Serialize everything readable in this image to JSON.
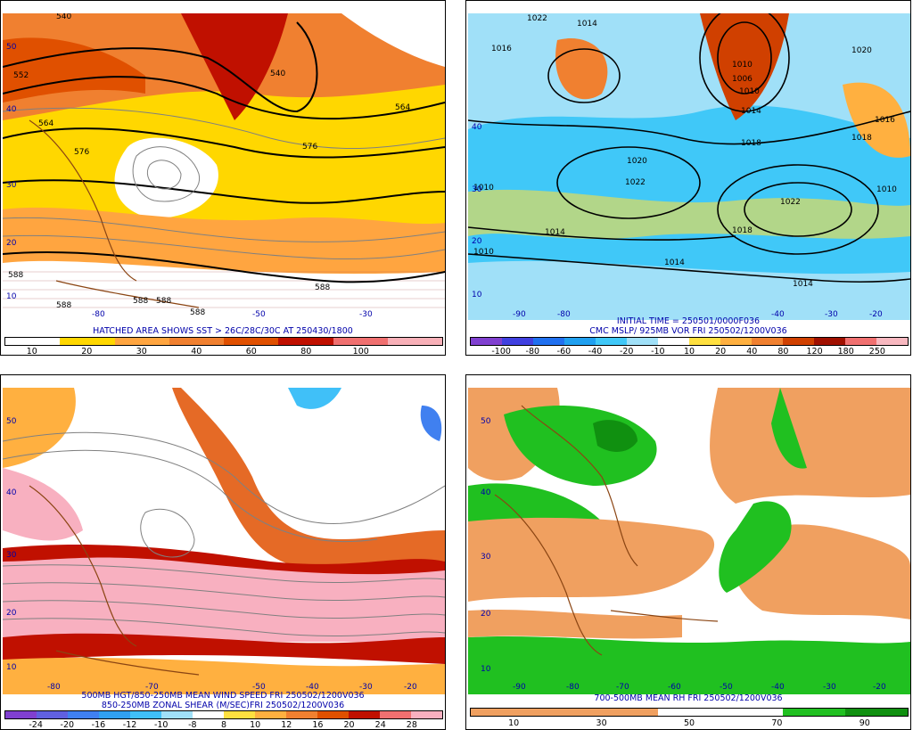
{
  "panels": [
    {
      "id": "p1",
      "caption_lines": [
        "HATCHED AREA SHOWS SST > 26C/28C/30C AT 250430/1800"
      ],
      "colorbar_colors": [
        "#ffffff",
        "#ffd700",
        "#ffa540",
        "#f08030",
        "#e05000",
        "#c01000",
        "#f07070",
        "#f8b0b8"
      ],
      "colorbar_ticks": [
        "10",
        "20",
        "30",
        "40",
        "60",
        "80",
        "100"
      ],
      "lat_labels": [
        "50",
        "40",
        "30",
        "20",
        "10"
      ],
      "lon_labels": [
        "-80",
        "-50",
        "-30"
      ],
      "contour_labels": [
        "540",
        "540",
        "552",
        "564",
        "576",
        "576",
        "564",
        "588",
        "588",
        "588",
        "588",
        "588",
        "588"
      ]
    },
    {
      "id": "p2",
      "caption_lines": [
        "INITIAL TIME = 250501/0000F036",
        "CMC MSLP/ 925MB VOR FRI 250502/1200V036"
      ],
      "colorbar_colors": [
        "#8040d0",
        "#4040e0",
        "#2070f0",
        "#20a0f0",
        "#40c8f8",
        "#a0e0f8",
        "#ffffff",
        "#ffe040",
        "#ffb040",
        "#f08030",
        "#d04000",
        "#a01000",
        "#f07070",
        "#f8b8c0"
      ],
      "colorbar_ticks": [
        "-100",
        "-80",
        "-60",
        "-40",
        "-20",
        "-10",
        "10",
        "20",
        "40",
        "80",
        "120",
        "180",
        "250"
      ],
      "lat_labels": [
        "40",
        "30",
        "20",
        "10"
      ],
      "lon_labels": [
        "-90",
        "-80",
        "-40",
        "-30",
        "-20"
      ],
      "contour_labels": [
        "1022",
        "1014",
        "1016",
        "1010",
        "1006",
        "1010",
        "1014",
        "1018",
        "1020",
        "1022",
        "1022",
        "1018",
        "1014",
        "1014",
        "1014",
        "1010",
        "1018",
        "1020",
        "1010",
        "1016",
        "1010"
      ]
    },
    {
      "id": "p3",
      "caption_lines": [
        "500MB HGT/850-250MB MEAN WIND SPEED FRI 250502/1200V036",
        "850-250MB ZONAL SHEAR (M/SEC)FRI 250502/1200V036"
      ],
      "colorbar_colors": [
        "#8040d0",
        "#6060e0",
        "#4080f0",
        "#30a0f0",
        "#40c0f8",
        "#a0e0f8",
        "#ffffff",
        "#ffe040",
        "#ffb040",
        "#f08030",
        "#e05000",
        "#c01000",
        "#f07070",
        "#f8b0c0"
      ],
      "colorbar_ticks": [
        "-24",
        "-20",
        "-16",
        "-12",
        "-10",
        "-8",
        "8",
        "10",
        "12",
        "16",
        "20",
        "24",
        "28"
      ],
      "lat_labels": [
        "50",
        "40",
        "30",
        "20",
        "10"
      ],
      "lon_labels": [
        "-80",
        "-70",
        "-50",
        "-40",
        "-30",
        "-20"
      ]
    },
    {
      "id": "p4",
      "caption_lines": [
        "700-500MB MEAN RH FRI 250502/1200V036"
      ],
      "colorbar_colors": [
        "#f0a060",
        "#f0a060",
        "#f0a060",
        "#ffffff",
        "#ffffff",
        "#20c020",
        "#109010"
      ],
      "colorbar_ticks": [
        "10",
        "30",
        "50",
        "70",
        "90"
      ],
      "lat_labels": [
        "50",
        "40",
        "30",
        "20",
        "10"
      ],
      "lon_labels": [
        "-90",
        "-80",
        "-70",
        "-60",
        "-50",
        "-40",
        "-30",
        "-20"
      ]
    }
  ]
}
